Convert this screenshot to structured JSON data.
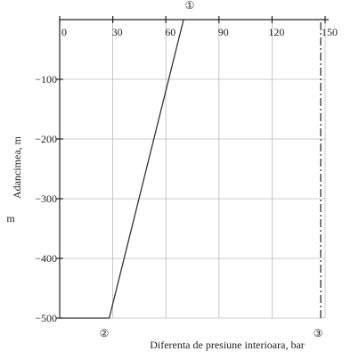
{
  "chart_data": {
    "type": "line",
    "xlabel": "Diferenta de presiune interioara, bar",
    "ylabel": "Adancimea, m",
    "y_unit_label": "m",
    "annotations": [
      "①",
      "②",
      "③"
    ],
    "xlim": [
      0,
      150
    ],
    "ylim": [
      -500,
      0
    ],
    "xticks": [
      0,
      30,
      60,
      90,
      120,
      150
    ],
    "yticks": [
      {
        "value": -500,
        "label": "−500"
      },
      {
        "value": -400,
        "label": "−400"
      },
      {
        "value": -300,
        "label": "−300"
      },
      {
        "value": -200,
        "label": "−200"
      },
      {
        "value": -100,
        "label": "−100"
      }
    ],
    "grid": true,
    "series": [
      {
        "color": "#333333",
        "dash": "solid",
        "x": [
          0,
          28,
          70
        ],
        "values": [
          -500,
          -500,
          0
        ]
      },
      {
        "color": "#333333",
        "dash": "dashdot",
        "x": [
          147.5,
          147.5
        ],
        "values": [
          -500,
          0
        ]
      }
    ]
  }
}
